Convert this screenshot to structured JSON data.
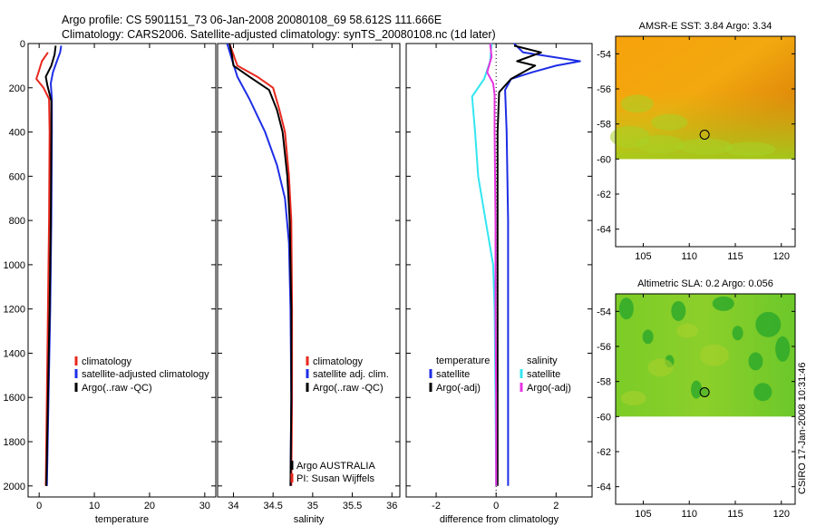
{
  "header": {
    "line1": "Argo profile: CS 5901151_73 06-Jan-2008 20080108_69 58.612S 111.666E",
    "line2": "Climatology: CARS2006. Satellite-adjusted climatology: synTS_20080108.nc (1d later)"
  },
  "credit": "CSIRO 17-Jan-2008 10:31:46",
  "colors": {
    "red": "#e8281e",
    "blue": "#1e2ee6",
    "black": "#000000",
    "cyan": "#33e6f0",
    "magenta": "#e633e0"
  },
  "chart_data": [
    {
      "type": "line",
      "title": "",
      "xlabel": "temperature",
      "ylabel": "",
      "xlim": [
        -2,
        32
      ],
      "ylim": [
        2050,
        0
      ],
      "x_ticks": [
        "0",
        "10",
        "20",
        "30"
      ],
      "x_tick_values": [
        0,
        10,
        20,
        30
      ],
      "y_ticks": [
        "0",
        "200",
        "400",
        "600",
        "800",
        "1000",
        "1200",
        "1400",
        "1600",
        "1800",
        "2000"
      ],
      "y_tick_values": [
        0,
        200,
        400,
        600,
        800,
        1000,
        1200,
        1400,
        1600,
        1800,
        2000
      ],
      "legend": [
        "climatology",
        "satellite-adjusted climatology",
        "Argo(..raw -QC)"
      ],
      "series": [
        {
          "name": "climatology",
          "color": "#e8281e",
          "points": [
            [
              1.6,
              40
            ],
            [
              0.5,
              80
            ],
            [
              0.0,
              120
            ],
            [
              -0.5,
              160
            ],
            [
              0.8,
              200
            ],
            [
              1.8,
              250
            ],
            [
              1.9,
              400
            ],
            [
              1.8,
              800
            ],
            [
              1.6,
              1200
            ],
            [
              1.4,
              1600
            ],
            [
              1.2,
              2000
            ]
          ]
        },
        {
          "name": "satellite-adjusted climatology",
          "color": "#1e2ee6",
          "points": [
            [
              4.0,
              10
            ],
            [
              3.8,
              40
            ],
            [
              3.2,
              80
            ],
            [
              2.5,
              130
            ],
            [
              2.1,
              180
            ],
            [
              2.3,
              250
            ],
            [
              2.3,
              400
            ],
            [
              2.2,
              800
            ],
            [
              2.0,
              1200
            ],
            [
              1.7,
              1600
            ],
            [
              1.4,
              2000
            ]
          ]
        },
        {
          "name": "Argo(..raw -QC)",
          "color": "#000000",
          "points": [
            [
              3.0,
              10
            ],
            [
              2.8,
              50
            ],
            [
              2.2,
              100
            ],
            [
              1.2,
              150
            ],
            [
              1.5,
              190
            ],
            [
              2.2,
              260
            ],
            [
              2.2,
              400
            ],
            [
              2.1,
              800
            ],
            [
              1.9,
              1200
            ],
            [
              1.6,
              1600
            ],
            [
              1.3,
              2000
            ]
          ]
        }
      ]
    },
    {
      "type": "line",
      "title": "",
      "xlabel": "salinity",
      "ylabel": "",
      "xlim": [
        33.8,
        36.1
      ],
      "ylim": [
        2050,
        0
      ],
      "x_ticks": [
        "34",
        "34.5",
        "35",
        "35.5",
        "36"
      ],
      "x_tick_values": [
        34,
        34.5,
        35,
        35.5,
        36
      ],
      "legend": [
        "climatology",
        "satellite adj. clim.",
        "Argo(..raw -QC)"
      ],
      "annotations": [
        "Argo AUSTRALIA",
        "PI: Susan Wijffels"
      ],
      "series": [
        {
          "name": "climatology",
          "color": "#e8281e",
          "points": [
            [
              33.95,
              0
            ],
            [
              34.0,
              50
            ],
            [
              34.05,
              100
            ],
            [
              34.3,
              150
            ],
            [
              34.5,
              200
            ],
            [
              34.58,
              300
            ],
            [
              34.65,
              400
            ],
            [
              34.7,
              600
            ],
            [
              34.73,
              800
            ],
            [
              34.74,
              1200
            ],
            [
              34.74,
              1600
            ],
            [
              34.73,
              2000
            ]
          ]
        },
        {
          "name": "satellite adj. clim.",
          "color": "#1e2ee6",
          "points": [
            [
              33.92,
              0
            ],
            [
              33.97,
              60
            ],
            [
              34.05,
              150
            ],
            [
              34.2,
              250
            ],
            [
              34.4,
              400
            ],
            [
              34.55,
              550
            ],
            [
              34.65,
              700
            ],
            [
              34.7,
              900
            ],
            [
              34.72,
              1200
            ],
            [
              34.73,
              1600
            ],
            [
              34.72,
              2000
            ]
          ]
        },
        {
          "name": "Argo(..raw -QC)",
          "color": "#000000",
          "points": [
            [
              33.95,
              0
            ],
            [
              33.98,
              50
            ],
            [
              34.0,
              100
            ],
            [
              34.2,
              150
            ],
            [
              34.45,
              210
            ],
            [
              34.55,
              300
            ],
            [
              34.62,
              400
            ],
            [
              34.68,
              600
            ],
            [
              34.71,
              800
            ],
            [
              34.73,
              1200
            ],
            [
              34.73,
              1600
            ],
            [
              34.72,
              2000
            ]
          ]
        }
      ]
    },
    {
      "type": "line",
      "title": "",
      "xlabel": "difference from climatology",
      "ylabel": "",
      "xlim": [
        -3,
        3.2
      ],
      "ylim": [
        2050,
        0
      ],
      "x_ticks": [
        "-2",
        "0",
        "2"
      ],
      "x_tick_values": [
        -2,
        0,
        2
      ],
      "legend_temperature": {
        "heading": "temperature",
        "items": [
          "satellite",
          "Argo(-adj)"
        ]
      },
      "legend_salinity": {
        "heading": "salinity",
        "items": [
          "satellite",
          "Argo(-adj)"
        ]
      },
      "series": [
        {
          "name": "temperature satellite",
          "color": "#1e2ee6",
          "points": [
            [
              0.6,
              0
            ],
            [
              0.9,
              40
            ],
            [
              2.8,
              80
            ],
            [
              2.0,
              100
            ],
            [
              1.2,
              130
            ],
            [
              0.5,
              160
            ],
            [
              0.3,
              210
            ],
            [
              0.35,
              400
            ],
            [
              0.4,
              800
            ],
            [
              0.4,
              1200
            ],
            [
              0.4,
              1600
            ],
            [
              0.4,
              2000
            ]
          ]
        },
        {
          "name": "temperature Argo(-adj)",
          "color": "#000000",
          "points": [
            [
              0.6,
              10
            ],
            [
              1.5,
              40
            ],
            [
              0.7,
              80
            ],
            [
              1.3,
              100
            ],
            [
              0.5,
              160
            ],
            [
              0.1,
              220
            ],
            [
              0.05,
              400
            ],
            [
              0.05,
              800
            ],
            [
              0.05,
              1200
            ],
            [
              0.05,
              1600
            ],
            [
              0.05,
              2000
            ]
          ]
        },
        {
          "name": "salinity satellite",
          "color": "#33e6f0",
          "points": [
            [
              -0.15,
              0
            ],
            [
              -0.2,
              80
            ],
            [
              -0.4,
              160
            ],
            [
              -0.8,
              240
            ],
            [
              -0.7,
              400
            ],
            [
              -0.6,
              600
            ],
            [
              -0.35,
              800
            ],
            [
              -0.1,
              1000
            ],
            [
              -0.05,
              1200
            ],
            [
              -0.02,
              1600
            ],
            [
              0.0,
              2000
            ]
          ]
        },
        {
          "name": "salinity Argo(-adj)",
          "color": "#e633e0",
          "points": [
            [
              -0.2,
              0
            ],
            [
              -0.15,
              60
            ],
            [
              -0.3,
              130
            ],
            [
              -0.1,
              180
            ],
            [
              -0.05,
              230
            ],
            [
              -0.05,
              400
            ],
            [
              -0.02,
              800
            ],
            [
              -0.02,
              1200
            ],
            [
              0.0,
              1600
            ],
            [
              0.0,
              2000
            ]
          ]
        }
      ]
    },
    {
      "type": "heatmap",
      "title": "AMSR-E SST: 3.84 Argo: 3.34",
      "xlabel": "",
      "ylabel": "",
      "xlim": [
        102,
        121.5
      ],
      "ylim": [
        -65,
        -53
      ],
      "data_ylim": [
        -60,
        -53
      ],
      "x_ticks": [
        "105",
        "110",
        "115",
        "120"
      ],
      "x_tick_values": [
        105,
        110,
        115,
        120
      ],
      "y_ticks": [
        "-54",
        "-56",
        "-58",
        "-60",
        "-62",
        "-64"
      ],
      "y_tick_values": [
        -54,
        -56,
        -58,
        -60,
        -62,
        -64
      ],
      "marker": {
        "lon": 111.666,
        "lat": -58.612
      }
    },
    {
      "type": "heatmap",
      "title": "Altimetric SLA: 0.2 Argo: 0.056",
      "xlabel": "",
      "ylabel": "",
      "xlim": [
        102,
        121.5
      ],
      "ylim": [
        -65,
        -53
      ],
      "data_ylim": [
        -60,
        -53
      ],
      "x_ticks": [
        "105",
        "110",
        "115",
        "120"
      ],
      "x_tick_values": [
        105,
        110,
        115,
        120
      ],
      "y_ticks": [
        "-54",
        "-56",
        "-58",
        "-60",
        "-62",
        "-64"
      ],
      "y_tick_values": [
        -54,
        -56,
        -58,
        -60,
        -62,
        -64
      ],
      "marker": {
        "lon": 111.666,
        "lat": -58.612
      }
    }
  ]
}
